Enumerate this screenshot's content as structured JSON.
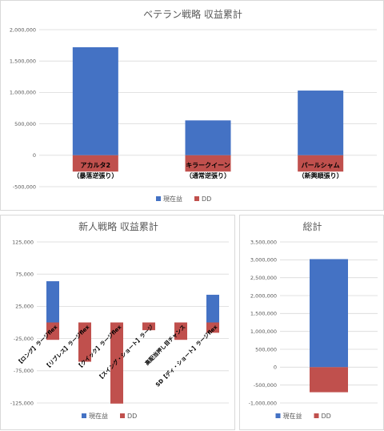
{
  "colors": {
    "profit": "#4472c4",
    "dd": "#c0504d"
  },
  "legend": {
    "profit": "現在益",
    "dd": "DD"
  },
  "chart_data": [
    {
      "type": "bar",
      "title": "ベテラン戦略 収益累計",
      "categories": [
        [
          "アカルタ2",
          "（暴落逆張り）"
        ],
        [
          "キラークイーン",
          "（通常逆張り）"
        ],
        [
          "パールシャム",
          "（新興順張り）"
        ]
      ],
      "series": [
        {
          "name": "現在益",
          "values": [
            1720000,
            555000,
            1030000
          ]
        },
        {
          "name": "DD",
          "values": [
            -260000,
            -260000,
            -260000
          ]
        }
      ],
      "ylim": [
        -500000,
        2000000
      ],
      "yticks": [
        -500000,
        0,
        500000,
        1000000,
        1500000,
        2000000
      ],
      "ytick_labels": [
        "-500,000",
        "0",
        "500,000",
        "1,000,000",
        "1,500,000",
        "2,000,000"
      ],
      "grid": true,
      "legend_position": "bottom"
    },
    {
      "type": "bar",
      "title": "新人戦略 収益累計",
      "categories": [
        "【ロング】ラージflex",
        "【リブレス】ラージflex",
        "【クイック】ラージflex",
        "【スイング・ショート】ラージ",
        "高配当押し目チャンス",
        "SD【ディ・ショート】ラージflex"
      ],
      "series": [
        {
          "name": "現在益",
          "values": [
            64000,
            0,
            0,
            0,
            0,
            43000
          ]
        },
        {
          "name": "DD",
          "values": [
            -27000,
            -61000,
            -126000,
            -12000,
            -27000,
            -16000
          ]
        }
      ],
      "ylim": [
        -125000,
        125000
      ],
      "yticks": [
        -125000,
        -75000,
        -25000,
        25000,
        75000,
        125000
      ],
      "ytick_labels": [
        "-125,000",
        "-75,000",
        "-25,000",
        "25,000",
        "75,000",
        "125,000"
      ],
      "grid": true,
      "legend_position": "bottom"
    },
    {
      "type": "bar",
      "title": "総計",
      "categories": [
        ""
      ],
      "series": [
        {
          "name": "現在益",
          "values": [
            3020000
          ]
        },
        {
          "name": "DD",
          "values": [
            -700000
          ]
        }
      ],
      "ylim": [
        -1000000,
        3500000
      ],
      "yticks": [
        -1000000,
        -500000,
        0,
        500000,
        1000000,
        1500000,
        2000000,
        2500000,
        3000000,
        3500000
      ],
      "ytick_labels": [
        "-1,000,000",
        "-500,000",
        "0",
        "500,000",
        "1,000,000",
        "1,500,000",
        "2,000,000",
        "2,500,000",
        "3,000,000",
        "3,500,000"
      ],
      "grid": true,
      "legend_position": "bottom"
    }
  ]
}
